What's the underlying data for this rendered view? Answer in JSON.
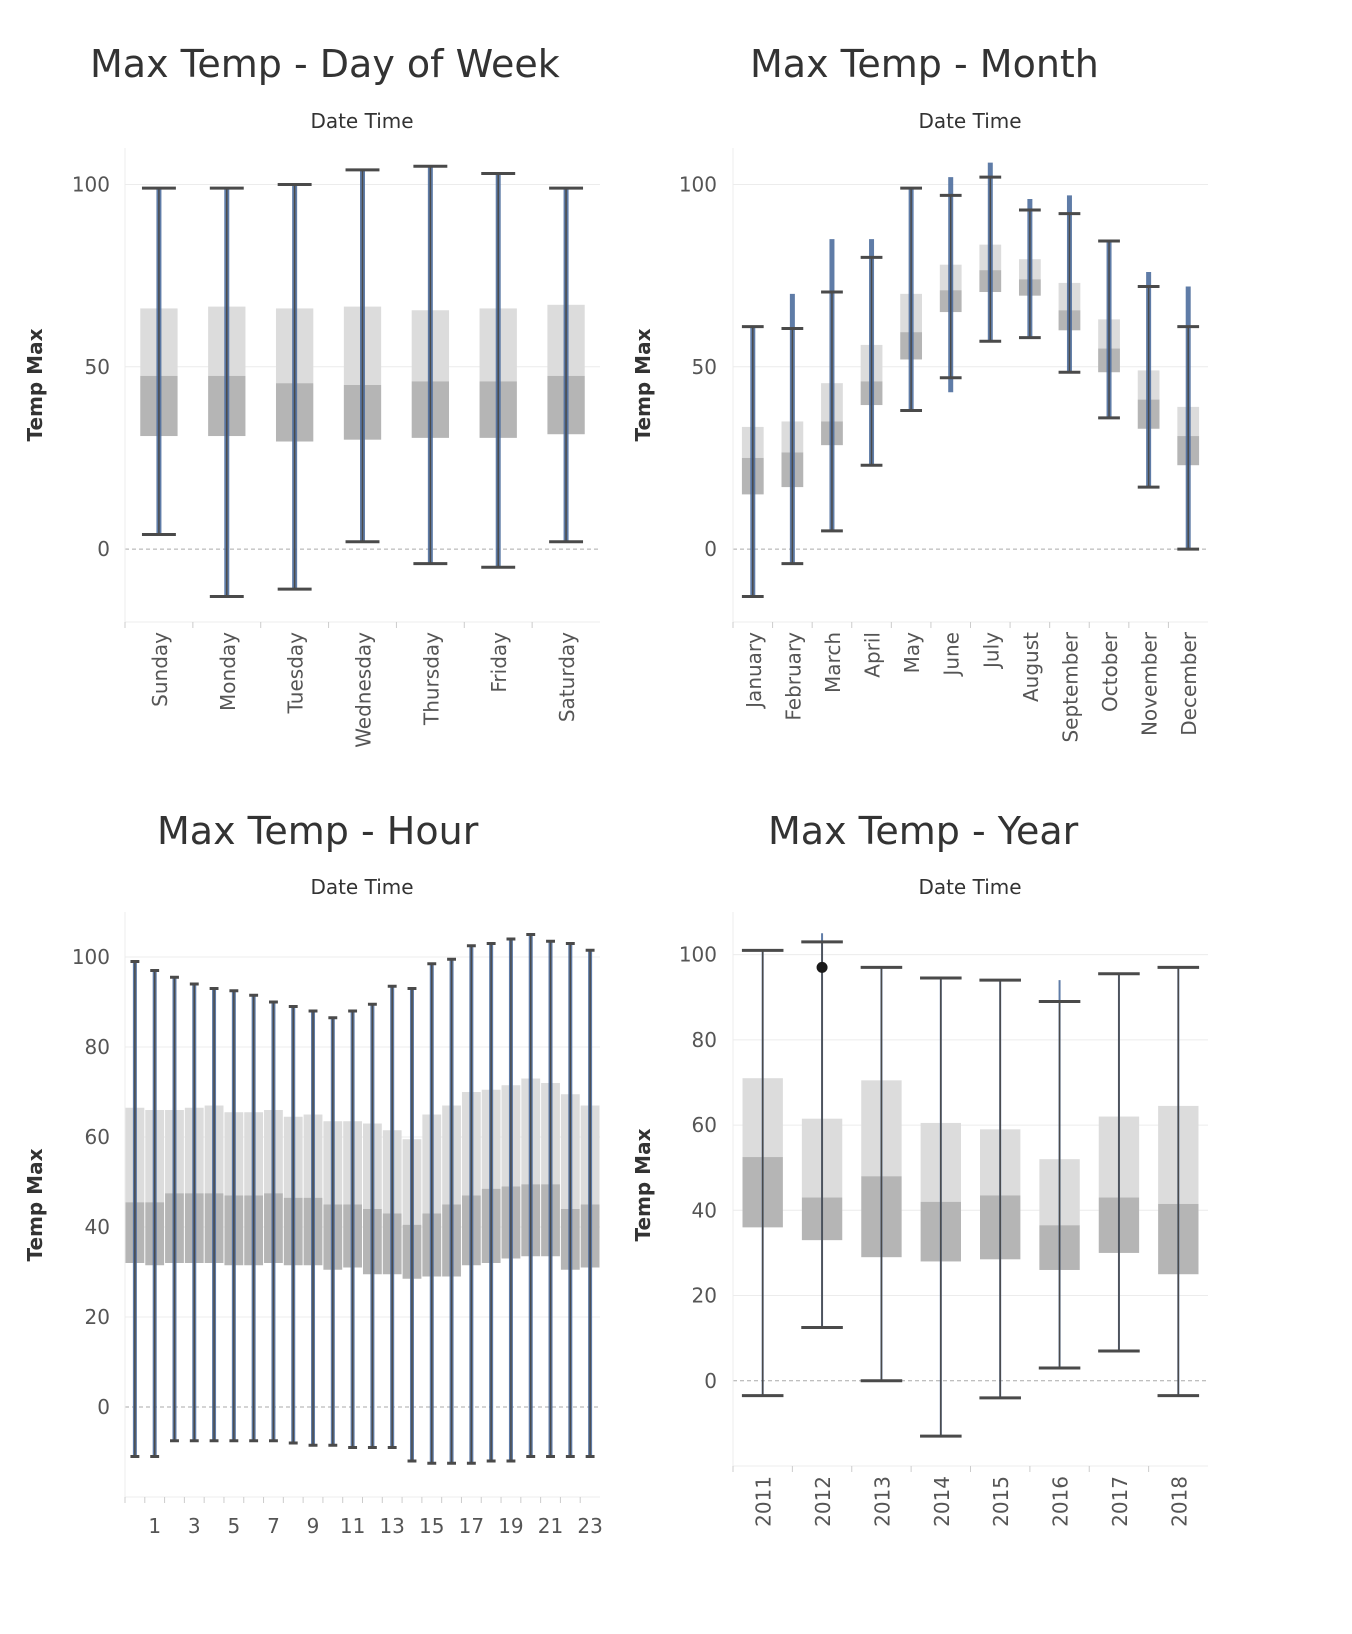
{
  "colors": {
    "whisker": "#4a4a4a",
    "points": "#4e6e9e",
    "box_upper": "#dcdcdc",
    "box_lower": "#b5b5b5",
    "grid": "#ececec",
    "zero_line": "#aaaaaa",
    "text": "#555555",
    "title": "#333333",
    "highlight": "#1a1a1a"
  },
  "chart_data": [
    {
      "type": "boxplot",
      "title": "Max Temp - Day of Week",
      "header": "Date Time",
      "ylabel": "Temp Max",
      "ylim": [
        -20,
        110
      ],
      "yticks": [
        0,
        50,
        100
      ],
      "categories": [
        "Sunday",
        "Monday",
        "Tuesday",
        "Wednesday",
        "Thursday",
        "Friday",
        "Saturday"
      ],
      "boxes": [
        {
          "min": 4,
          "q1": 31,
          "median": 47.5,
          "q3": 66,
          "max": 99,
          "pmin": 4,
          "pmax": 99
        },
        {
          "min": -13,
          "q1": 31,
          "median": 47.5,
          "q3": 66.5,
          "max": 99,
          "pmin": -13,
          "pmax": 99
        },
        {
          "min": -11,
          "q1": 29.5,
          "median": 45.5,
          "q3": 66,
          "max": 100,
          "pmin": -11,
          "pmax": 100
        },
        {
          "min": 2,
          "q1": 30,
          "median": 45,
          "q3": 66.5,
          "max": 104,
          "pmin": 2,
          "pmax": 104
        },
        {
          "min": -4,
          "q1": 30.5,
          "median": 46,
          "q3": 65.5,
          "max": 105,
          "pmin": -4,
          "pmax": 105
        },
        {
          "min": -5,
          "q1": 30.5,
          "median": 46,
          "q3": 66,
          "max": 103,
          "pmin": -5,
          "pmax": 103
        },
        {
          "min": 2,
          "q1": 31.5,
          "median": 47.5,
          "q3": 67,
          "max": 99,
          "pmin": 2,
          "pmax": 99
        }
      ]
    },
    {
      "type": "boxplot",
      "title": "Max Temp - Month",
      "header": "Date Time",
      "ylabel": "Temp Max",
      "ylim": [
        -20,
        110
      ],
      "yticks": [
        0,
        50,
        100
      ],
      "categories": [
        "January",
        "February",
        "March",
        "April",
        "May",
        "June",
        "July",
        "August",
        "September",
        "October",
        "November",
        "December"
      ],
      "boxes": [
        {
          "min": -13,
          "q1": 15,
          "median": 25,
          "q3": 33.5,
          "max": 61,
          "pmin": -13,
          "pmax": 61
        },
        {
          "min": -4,
          "q1": 17,
          "median": 26.5,
          "q3": 35,
          "max": 60.5,
          "pmin": -4,
          "pmax": 70
        },
        {
          "min": 5,
          "q1": 28.5,
          "median": 35,
          "q3": 45.5,
          "max": 70.5,
          "pmin": 5,
          "pmax": 85
        },
        {
          "min": 23,
          "q1": 39.5,
          "median": 46,
          "q3": 56,
          "max": 80,
          "pmin": 23,
          "pmax": 85
        },
        {
          "min": 38,
          "q1": 52,
          "median": 59.5,
          "q3": 70,
          "max": 99,
          "pmin": 38,
          "pmax": 99
        },
        {
          "min": 47,
          "q1": 65,
          "median": 71,
          "q3": 78,
          "max": 97,
          "pmin": 43,
          "pmax": 102
        },
        {
          "min": 57,
          "q1": 70.5,
          "median": 76.5,
          "q3": 83.5,
          "max": 102,
          "pmin": 57,
          "pmax": 106
        },
        {
          "min": 58,
          "q1": 69.5,
          "median": 74,
          "q3": 79.5,
          "max": 93,
          "pmin": 58,
          "pmax": 96
        },
        {
          "min": 48.5,
          "q1": 60,
          "median": 65.5,
          "q3": 73,
          "max": 92,
          "pmin": 48.5,
          "pmax": 97
        },
        {
          "min": 36,
          "q1": 48.5,
          "median": 55,
          "q3": 63,
          "max": 84.5,
          "pmin": 36,
          "pmax": 84.5
        },
        {
          "min": 17,
          "q1": 33,
          "median": 41,
          "q3": 49,
          "max": 72,
          "pmin": 17,
          "pmax": 76
        },
        {
          "min": 0,
          "q1": 23,
          "median": 31,
          "q3": 39,
          "max": 61,
          "pmin": 0,
          "pmax": 72
        }
      ]
    },
    {
      "type": "boxplot",
      "title": "Max Temp - Hour",
      "header": "Date Time",
      "ylabel": "Temp Max",
      "ylim": [
        -20,
        110
      ],
      "yticks": [
        0,
        20,
        40,
        60,
        80,
        100
      ],
      "categories": [
        "0",
        "1",
        "2",
        "3",
        "4",
        "5",
        "6",
        "7",
        "8",
        "9",
        "10",
        "11",
        "12",
        "13",
        "14",
        "15",
        "16",
        "17",
        "18",
        "19",
        "20",
        "21",
        "22",
        "23"
      ],
      "category_labels": [
        "",
        "1",
        "",
        "3",
        "",
        "5",
        "",
        "7",
        "",
        "9",
        "",
        "11",
        "",
        "13",
        "",
        "15",
        "",
        "17",
        "",
        "19",
        "",
        "21",
        "",
        "23"
      ],
      "boxes": [
        {
          "min": -11,
          "q1": 32,
          "median": 45.5,
          "q3": 66.5,
          "max": 99,
          "pmin": -11,
          "pmax": 99
        },
        {
          "min": -11,
          "q1": 31.5,
          "median": 45.5,
          "q3": 66,
          "max": 97,
          "pmin": -11,
          "pmax": 97
        },
        {
          "min": -7.5,
          "q1": 32,
          "median": 47.5,
          "q3": 66,
          "max": 95.5,
          "pmin": -7.5,
          "pmax": 95.5
        },
        {
          "min": -7.5,
          "q1": 32,
          "median": 47.5,
          "q3": 66.5,
          "max": 94,
          "pmin": -7.5,
          "pmax": 94
        },
        {
          "min": -7.5,
          "q1": 32,
          "median": 47.5,
          "q3": 67,
          "max": 93,
          "pmin": -7.5,
          "pmax": 93
        },
        {
          "min": -7.5,
          "q1": 31.5,
          "median": 47,
          "q3": 65.5,
          "max": 92.5,
          "pmin": -7.5,
          "pmax": 92.5
        },
        {
          "min": -7.5,
          "q1": 31.5,
          "median": 47,
          "q3": 65.5,
          "max": 91.5,
          "pmin": -7.5,
          "pmax": 91.5
        },
        {
          "min": -7.5,
          "q1": 32,
          "median": 47.5,
          "q3": 66,
          "max": 90,
          "pmin": -7.5,
          "pmax": 90
        },
        {
          "min": -8,
          "q1": 31.5,
          "median": 46.5,
          "q3": 64.5,
          "max": 89,
          "pmin": -8,
          "pmax": 89
        },
        {
          "min": -8.5,
          "q1": 31.5,
          "median": 46.5,
          "q3": 65,
          "max": 88,
          "pmin": -8.5,
          "pmax": 88
        },
        {
          "min": -8.5,
          "q1": 30.5,
          "median": 45,
          "q3": 63.5,
          "max": 86.5,
          "pmin": -8.5,
          "pmax": 86.5
        },
        {
          "min": -9,
          "q1": 31,
          "median": 45,
          "q3": 63.5,
          "max": 88,
          "pmin": -9,
          "pmax": 88
        },
        {
          "min": -9,
          "q1": 29.5,
          "median": 44,
          "q3": 63,
          "max": 89.5,
          "pmin": -9,
          "pmax": 89.5
        },
        {
          "min": -9,
          "q1": 29.5,
          "median": 43,
          "q3": 61.5,
          "max": 93.5,
          "pmin": -9,
          "pmax": 93.5
        },
        {
          "min": -12,
          "q1": 28.5,
          "median": 40.5,
          "q3": 59.5,
          "max": 93,
          "pmin": -12,
          "pmax": 93
        },
        {
          "min": -12.5,
          "q1": 29,
          "median": 43,
          "q3": 65,
          "max": 98.5,
          "pmin": -12.5,
          "pmax": 98.5
        },
        {
          "min": -12.5,
          "q1": 29,
          "median": 45,
          "q3": 67,
          "max": 99.5,
          "pmin": -12.5,
          "pmax": 99.5
        },
        {
          "min": -12.5,
          "q1": 31.5,
          "median": 47,
          "q3": 70,
          "max": 102.5,
          "pmin": -12.5,
          "pmax": 102.5
        },
        {
          "min": -12,
          "q1": 32,
          "median": 48.5,
          "q3": 70.5,
          "max": 103,
          "pmin": -12,
          "pmax": 103
        },
        {
          "min": -12,
          "q1": 33,
          "median": 49,
          "q3": 71.5,
          "max": 104,
          "pmin": -12,
          "pmax": 104
        },
        {
          "min": -11,
          "q1": 33.5,
          "median": 49.5,
          "q3": 73,
          "max": 105,
          "pmin": -11,
          "pmax": 105
        },
        {
          "min": -11,
          "q1": 33.5,
          "median": 49.5,
          "q3": 72,
          "max": 103.5,
          "pmin": -11,
          "pmax": 103.5
        },
        {
          "min": -11,
          "q1": 30.5,
          "median": 44,
          "q3": 69.5,
          "max": 103,
          "pmin": -11,
          "pmax": 103
        },
        {
          "min": -11,
          "q1": 31,
          "median": 45,
          "q3": 67,
          "max": 101.5,
          "pmin": -11,
          "pmax": 101.5
        }
      ]
    },
    {
      "type": "boxplot",
      "title": "Max Temp - Year",
      "header": "Date Time",
      "ylabel": "Temp Max",
      "ylim": [
        -20,
        110
      ],
      "yticks": [
        0,
        20,
        40,
        60,
        80,
        100
      ],
      "categories": [
        "2011",
        "2012",
        "2013",
        "2014",
        "2015",
        "2016",
        "2017",
        "2018"
      ],
      "highlight_point": {
        "category": "2012",
        "value": 97
      },
      "boxes": [
        {
          "min": -3.5,
          "q1": 36,
          "median": 52.5,
          "q3": 71,
          "max": 101,
          "pmin": -3.5,
          "pmax": 101
        },
        {
          "min": 12.5,
          "q1": 33,
          "median": 43,
          "q3": 61.5,
          "max": 103,
          "pmin": 12.5,
          "pmax": 105
        },
        {
          "min": 0,
          "q1": 29,
          "median": 48,
          "q3": 70.5,
          "max": 97,
          "pmin": 0,
          "pmax": 97
        },
        {
          "min": -13,
          "q1": 28,
          "median": 42,
          "q3": 60.5,
          "max": 94.5,
          "pmin": -13,
          "pmax": 94.5
        },
        {
          "min": -4,
          "q1": 28.5,
          "median": 43.5,
          "q3": 59,
          "max": 94,
          "pmin": -4,
          "pmax": 94
        },
        {
          "min": 3,
          "q1": 26,
          "median": 36.5,
          "q3": 52,
          "max": 89,
          "pmin": 3,
          "pmax": 94
        },
        {
          "min": 7,
          "q1": 30,
          "median": 43,
          "q3": 62,
          "max": 95.5,
          "pmin": 7,
          "pmax": 95.5
        },
        {
          "min": -3.5,
          "q1": 25,
          "median": 41.5,
          "q3": 64.5,
          "max": 97,
          "pmin": -3.5,
          "pmax": 97
        }
      ]
    }
  ]
}
